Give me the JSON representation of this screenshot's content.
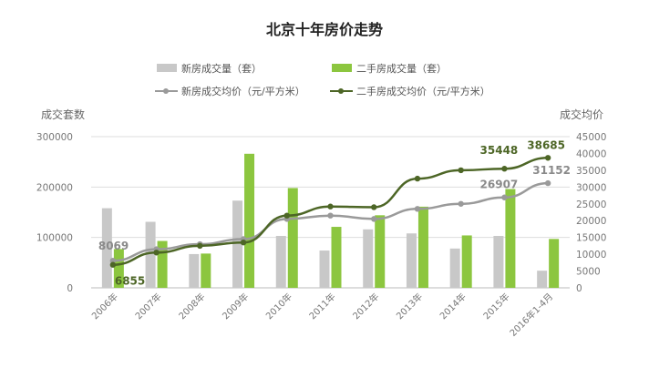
{
  "chart_data": {
    "type": "bar",
    "title": "北京十年房价走势",
    "ylabel_left": "成交套数",
    "ylabel_right": "成交均价",
    "categories": [
      "2006年",
      "2007年",
      "2008年",
      "2009年",
      "2010年",
      "2011年",
      "2012年",
      "2013年",
      "2014年",
      "2015年",
      "2016年1-4月"
    ],
    "ylim_left": [
      0,
      300000
    ],
    "yticks_left": [
      "0",
      "100000",
      "200000",
      "300000"
    ],
    "ylim_right": [
      0,
      45000
    ],
    "yticks_right": [
      "0",
      "5000",
      "10000",
      "15000",
      "20000",
      "25000",
      "30000",
      "35000",
      "40000",
      "45000"
    ],
    "bar_series": [
      {
        "name": "新房成交量（套）",
        "color": "#c8c8c8",
        "values": [
          158000,
          131000,
          67000,
          173000,
          103000,
          74000,
          116000,
          108000,
          78000,
          103000,
          34000
        ]
      },
      {
        "name": "二手房成交量（套）",
        "color": "#8cc63f",
        "values": [
          77000,
          93000,
          68000,
          266000,
          198000,
          121000,
          144000,
          161000,
          104000,
          196000,
          97000
        ]
      }
    ],
    "line_series": [
      {
        "name": "新房成交均价（元/平方米）",
        "color": "#9a9a9a",
        "values": [
          8069,
          11500,
          13000,
          14500,
          20500,
          21500,
          20500,
          23500,
          25000,
          26907,
          31152
        ]
      },
      {
        "name": "二手房成交均价（元/平方米）",
        "color": "#4d6626",
        "values": [
          6855,
          10500,
          12500,
          13500,
          21500,
          24200,
          24000,
          32500,
          35000,
          35448,
          38685
        ]
      }
    ],
    "data_labels": {
      "new_first": "8069",
      "second_first": "6855",
      "new_2015": "26907",
      "second_2015": "35448",
      "new_last": "31152",
      "second_last": "38685"
    },
    "legend_position": "top",
    "grid": true
  }
}
